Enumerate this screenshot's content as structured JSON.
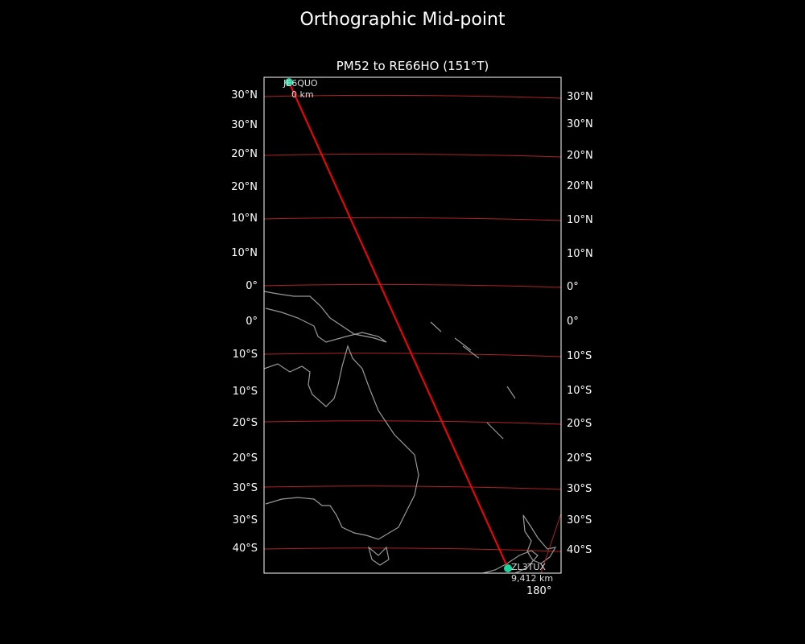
{
  "title": "Orthographic Mid-point",
  "subtitle": "PM52 to RE66HO (151°T)",
  "left_lat_labels": [
    "30°N",
    "30°N",
    "20°N",
    "20°N",
    "10°N",
    "10°N",
    "0°",
    "0°",
    "10°S",
    "10°S",
    "20°S",
    "20°S",
    "30°S",
    "30°S",
    "40°S"
  ],
  "right_lat_labels": [
    "30°N",
    "30°N",
    "20°N",
    "20°N",
    "10°N",
    "10°N",
    "0°",
    "0°",
    "10°S",
    "10°S",
    "20°S",
    "20°S",
    "30°S",
    "30°S",
    "40°S"
  ],
  "bottom_lon_label": "180°",
  "start": {
    "call": "JE6QUO",
    "distance": "0 km"
  },
  "end": {
    "call": "ZL3TUX",
    "distance": "9,412 km"
  },
  "colors": {
    "path": "#ff0000",
    "graticule": "#b22222",
    "marker": "#1dd3a0",
    "coast": "#999999"
  }
}
